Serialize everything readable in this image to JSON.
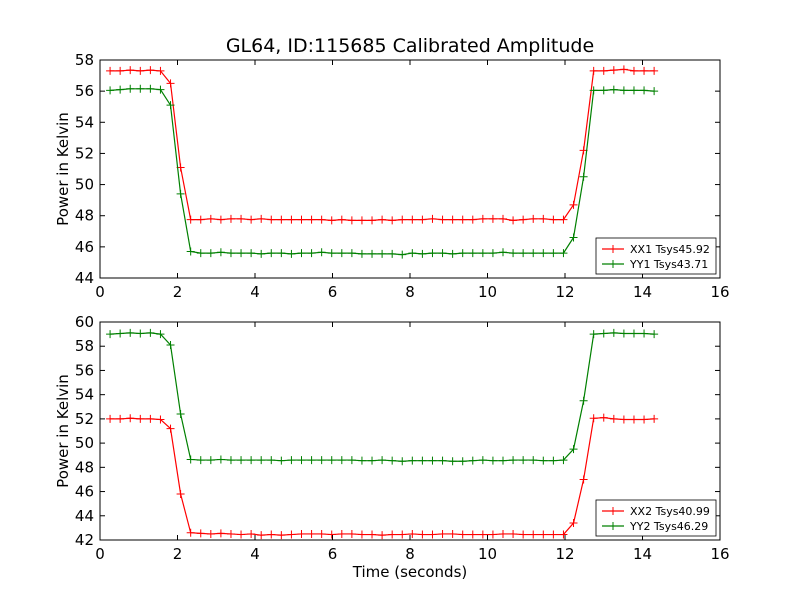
{
  "title": "GL64, ID:115685 Calibrated Amplitude",
  "chart_data": [
    {
      "type": "line",
      "ylabel": "Power in Kelvin",
      "xlabel": "",
      "xlim": [
        0,
        16
      ],
      "ylim": [
        44,
        58
      ],
      "xticks": [
        "0",
        "2",
        "4",
        "6",
        "8",
        "10",
        "12",
        "14",
        "16"
      ],
      "yticks": [
        "44",
        "46",
        "48",
        "50",
        "52",
        "54",
        "56",
        "58"
      ],
      "grid": false,
      "legend_position": "lower-right",
      "x": [
        0.26,
        0.52,
        0.78,
        1.04,
        1.3,
        1.56,
        1.82,
        2.08,
        2.34,
        2.6,
        2.86,
        3.12,
        3.38,
        3.64,
        3.9,
        4.16,
        4.42,
        4.68,
        4.94,
        5.2,
        5.46,
        5.72,
        5.98,
        6.24,
        6.5,
        6.76,
        7.02,
        7.28,
        7.54,
        7.8,
        8.06,
        8.32,
        8.58,
        8.84,
        9.1,
        9.36,
        9.62,
        9.88,
        10.14,
        10.4,
        10.66,
        10.92,
        11.18,
        11.44,
        11.7,
        11.96,
        12.22,
        12.48,
        12.74,
        13.0,
        13.26,
        13.52,
        13.78,
        14.04,
        14.3
      ],
      "series": [
        {
          "name": "XX1 Tsys45.92",
          "color": "#ff0000",
          "values": [
            57.3,
            57.3,
            57.35,
            57.3,
            57.35,
            57.3,
            56.5,
            51.1,
            47.75,
            47.75,
            47.8,
            47.75,
            47.8,
            47.8,
            47.75,
            47.8,
            47.75,
            47.75,
            47.75,
            47.75,
            47.75,
            47.75,
            47.7,
            47.75,
            47.7,
            47.7,
            47.7,
            47.75,
            47.7,
            47.75,
            47.75,
            47.75,
            47.8,
            47.75,
            47.75,
            47.75,
            47.75,
            47.8,
            47.8,
            47.8,
            47.7,
            47.75,
            47.8,
            47.8,
            47.75,
            47.75,
            48.7,
            52.2,
            57.3,
            57.3,
            57.35,
            57.4,
            57.3,
            57.3,
            57.3
          ]
        },
        {
          "name": "YY1 Tsys43.71",
          "color": "#008000",
          "values": [
            56.05,
            56.1,
            56.15,
            56.15,
            56.15,
            56.1,
            55.1,
            49.4,
            45.7,
            45.6,
            45.6,
            45.65,
            45.6,
            45.6,
            45.6,
            45.55,
            45.6,
            45.6,
            45.55,
            45.6,
            45.6,
            45.65,
            45.6,
            45.6,
            45.6,
            45.55,
            45.55,
            45.55,
            45.55,
            45.5,
            45.6,
            45.55,
            45.6,
            45.6,
            45.55,
            45.6,
            45.6,
            45.6,
            45.6,
            45.65,
            45.6,
            45.6,
            45.6,
            45.6,
            45.6,
            45.6,
            46.6,
            50.5,
            56.05,
            56.05,
            56.1,
            56.05,
            56.05,
            56.05,
            56.0
          ]
        }
      ]
    },
    {
      "type": "line",
      "ylabel": "Power in Kelvin",
      "xlabel": "Time (seconds)",
      "xlim": [
        0,
        16
      ],
      "ylim": [
        42,
        60
      ],
      "xticks": [
        "0",
        "2",
        "4",
        "6",
        "8",
        "10",
        "12",
        "14",
        "16"
      ],
      "yticks": [
        "42",
        "44",
        "46",
        "48",
        "50",
        "52",
        "54",
        "56",
        "58",
        "60"
      ],
      "grid": false,
      "legend_position": "lower-right",
      "x": [
        0.26,
        0.52,
        0.78,
        1.04,
        1.3,
        1.56,
        1.82,
        2.08,
        2.34,
        2.6,
        2.86,
        3.12,
        3.38,
        3.64,
        3.9,
        4.16,
        4.42,
        4.68,
        4.94,
        5.2,
        5.46,
        5.72,
        5.98,
        6.24,
        6.5,
        6.76,
        7.02,
        7.28,
        7.54,
        7.8,
        8.06,
        8.32,
        8.58,
        8.84,
        9.1,
        9.36,
        9.62,
        9.88,
        10.14,
        10.4,
        10.66,
        10.92,
        11.18,
        11.44,
        11.7,
        11.96,
        12.22,
        12.48,
        12.74,
        13.0,
        13.26,
        13.52,
        13.78,
        14.04,
        14.3
      ],
      "series": [
        {
          "name": "XX2 Tsys40.99",
          "color": "#ff0000",
          "values": [
            52.0,
            52.0,
            52.05,
            52.0,
            52.0,
            51.95,
            51.2,
            45.8,
            42.6,
            42.55,
            42.5,
            42.55,
            42.5,
            42.45,
            42.5,
            42.4,
            42.45,
            42.4,
            42.45,
            42.5,
            42.5,
            42.5,
            42.45,
            42.5,
            42.5,
            42.45,
            42.45,
            42.4,
            42.45,
            42.45,
            42.5,
            42.45,
            42.45,
            42.5,
            42.5,
            42.45,
            42.45,
            42.45,
            42.45,
            42.5,
            42.5,
            42.45,
            42.45,
            42.45,
            42.45,
            42.45,
            43.4,
            47.0,
            52.05,
            52.1,
            52.0,
            51.95,
            51.95,
            51.95,
            52.0
          ]
        },
        {
          "name": "YY2 Tsys46.29",
          "color": "#008000",
          "values": [
            59.0,
            59.05,
            59.1,
            59.05,
            59.1,
            59.0,
            58.1,
            52.4,
            48.65,
            48.6,
            48.6,
            48.65,
            48.6,
            48.6,
            48.6,
            48.6,
            48.6,
            48.55,
            48.6,
            48.6,
            48.6,
            48.6,
            48.6,
            48.6,
            48.6,
            48.55,
            48.55,
            48.6,
            48.55,
            48.5,
            48.55,
            48.55,
            48.55,
            48.55,
            48.5,
            48.5,
            48.55,
            48.6,
            48.55,
            48.55,
            48.6,
            48.6,
            48.6,
            48.55,
            48.55,
            48.6,
            49.5,
            53.5,
            59.0,
            59.05,
            59.1,
            59.05,
            59.05,
            59.05,
            59.0
          ]
        }
      ]
    }
  ]
}
